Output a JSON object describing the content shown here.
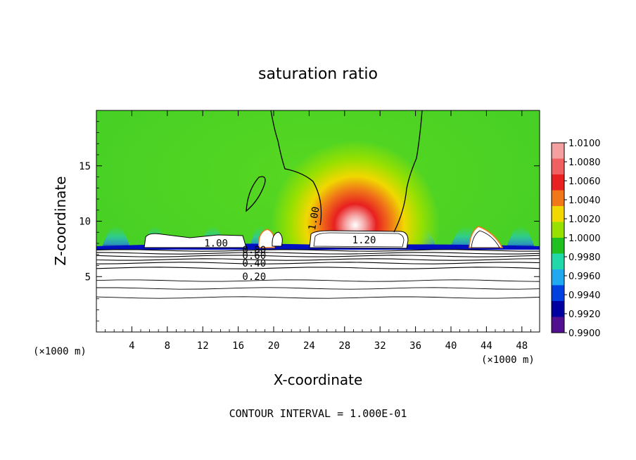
{
  "chart_data": {
    "type": "heatmap",
    "title": "saturation ratio",
    "xlabel": "X-coordinate",
    "ylabel": "Z-coordinate",
    "x_unit": "(×1000 m)",
    "y_unit": "(×1000 m)",
    "footer": "CONTOUR INTERVAL = 1.000E-01",
    "xlim": [
      0,
      50
    ],
    "ylim": [
      0,
      20
    ],
    "x_ticks": [
      4,
      8,
      12,
      16,
      20,
      24,
      28,
      32,
      36,
      40,
      44,
      48
    ],
    "y_ticks": [
      5,
      10,
      15
    ],
    "colorbar": {
      "levels": [
        "1.0100",
        "1.0080",
        "1.0060",
        "1.0040",
        "1.0020",
        "1.0000",
        "0.9980",
        "0.9960",
        "0.9940",
        "0.9920",
        "0.9900"
      ],
      "colors": [
        "#f4a0a0",
        "#f06060",
        "#e82020",
        "#f07818",
        "#f0d800",
        "#98e000",
        "#20c020",
        "#20d8a8",
        "#20a8f0",
        "#0040e0",
        "#0000a0",
        "#501090"
      ]
    },
    "contour_labels": [
      {
        "text": "1.00",
        "x": 13.5,
        "z": 7.7
      },
      {
        "text": "1.20",
        "x": 30.2,
        "z": 8.0
      },
      {
        "text": "1.00",
        "x": 24.9,
        "z": 10.2
      },
      {
        "text": "0.80",
        "x": 17.8,
        "z": 7.1
      },
      {
        "text": "0.60",
        "x": 17.8,
        "z": 6.6
      },
      {
        "text": "0.40",
        "x": 17.8,
        "z": 5.9
      },
      {
        "text": "0.20",
        "x": 17.8,
        "z": 4.7
      }
    ]
  }
}
